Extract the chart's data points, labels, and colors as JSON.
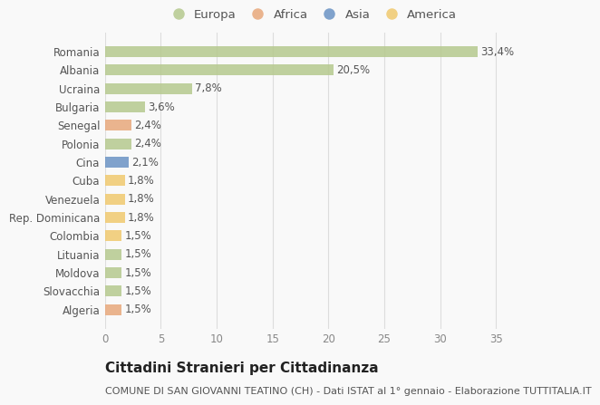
{
  "categories": [
    "Romania",
    "Albania",
    "Ucraina",
    "Bulgaria",
    "Senegal",
    "Polonia",
    "Cina",
    "Cuba",
    "Venezuela",
    "Rep. Dominicana",
    "Colombia",
    "Lituania",
    "Moldova",
    "Slovacchia",
    "Algeria"
  ],
  "values": [
    33.4,
    20.5,
    7.8,
    3.6,
    2.4,
    2.4,
    2.1,
    1.8,
    1.8,
    1.8,
    1.5,
    1.5,
    1.5,
    1.5,
    1.5
  ],
  "labels": [
    "33,4%",
    "20,5%",
    "7,8%",
    "3,6%",
    "2,4%",
    "2,4%",
    "2,1%",
    "1,8%",
    "1,8%",
    "1,8%",
    "1,5%",
    "1,5%",
    "1,5%",
    "1,5%",
    "1,5%"
  ],
  "colors": [
    "#b5c98e",
    "#b5c98e",
    "#b5c98e",
    "#b5c98e",
    "#e8a87c",
    "#b5c98e",
    "#6b93c4",
    "#f0c96e",
    "#f0c96e",
    "#f0c96e",
    "#f0c96e",
    "#b5c98e",
    "#b5c98e",
    "#b5c98e",
    "#e8a87c"
  ],
  "legend_labels": [
    "Europa",
    "Africa",
    "Asia",
    "America"
  ],
  "legend_colors": [
    "#b5c98e",
    "#e8a87c",
    "#6b93c4",
    "#f0c96e"
  ],
  "xlim": [
    0,
    37
  ],
  "xticks": [
    0,
    5,
    10,
    15,
    20,
    25,
    30,
    35
  ],
  "title": "Cittadini Stranieri per Cittadinanza",
  "subtitle": "COMUNE DI SAN GIOVANNI TEATINO (CH) - Dati ISTAT al 1° gennaio - Elaborazione TUTTITALIA.IT",
  "background_color": "#f9f9f9",
  "grid_color": "#dddddd",
  "bar_height": 0.6,
  "title_fontsize": 11,
  "subtitle_fontsize": 8,
  "label_fontsize": 8.5,
  "tick_fontsize": 8.5,
  "legend_fontsize": 9.5
}
